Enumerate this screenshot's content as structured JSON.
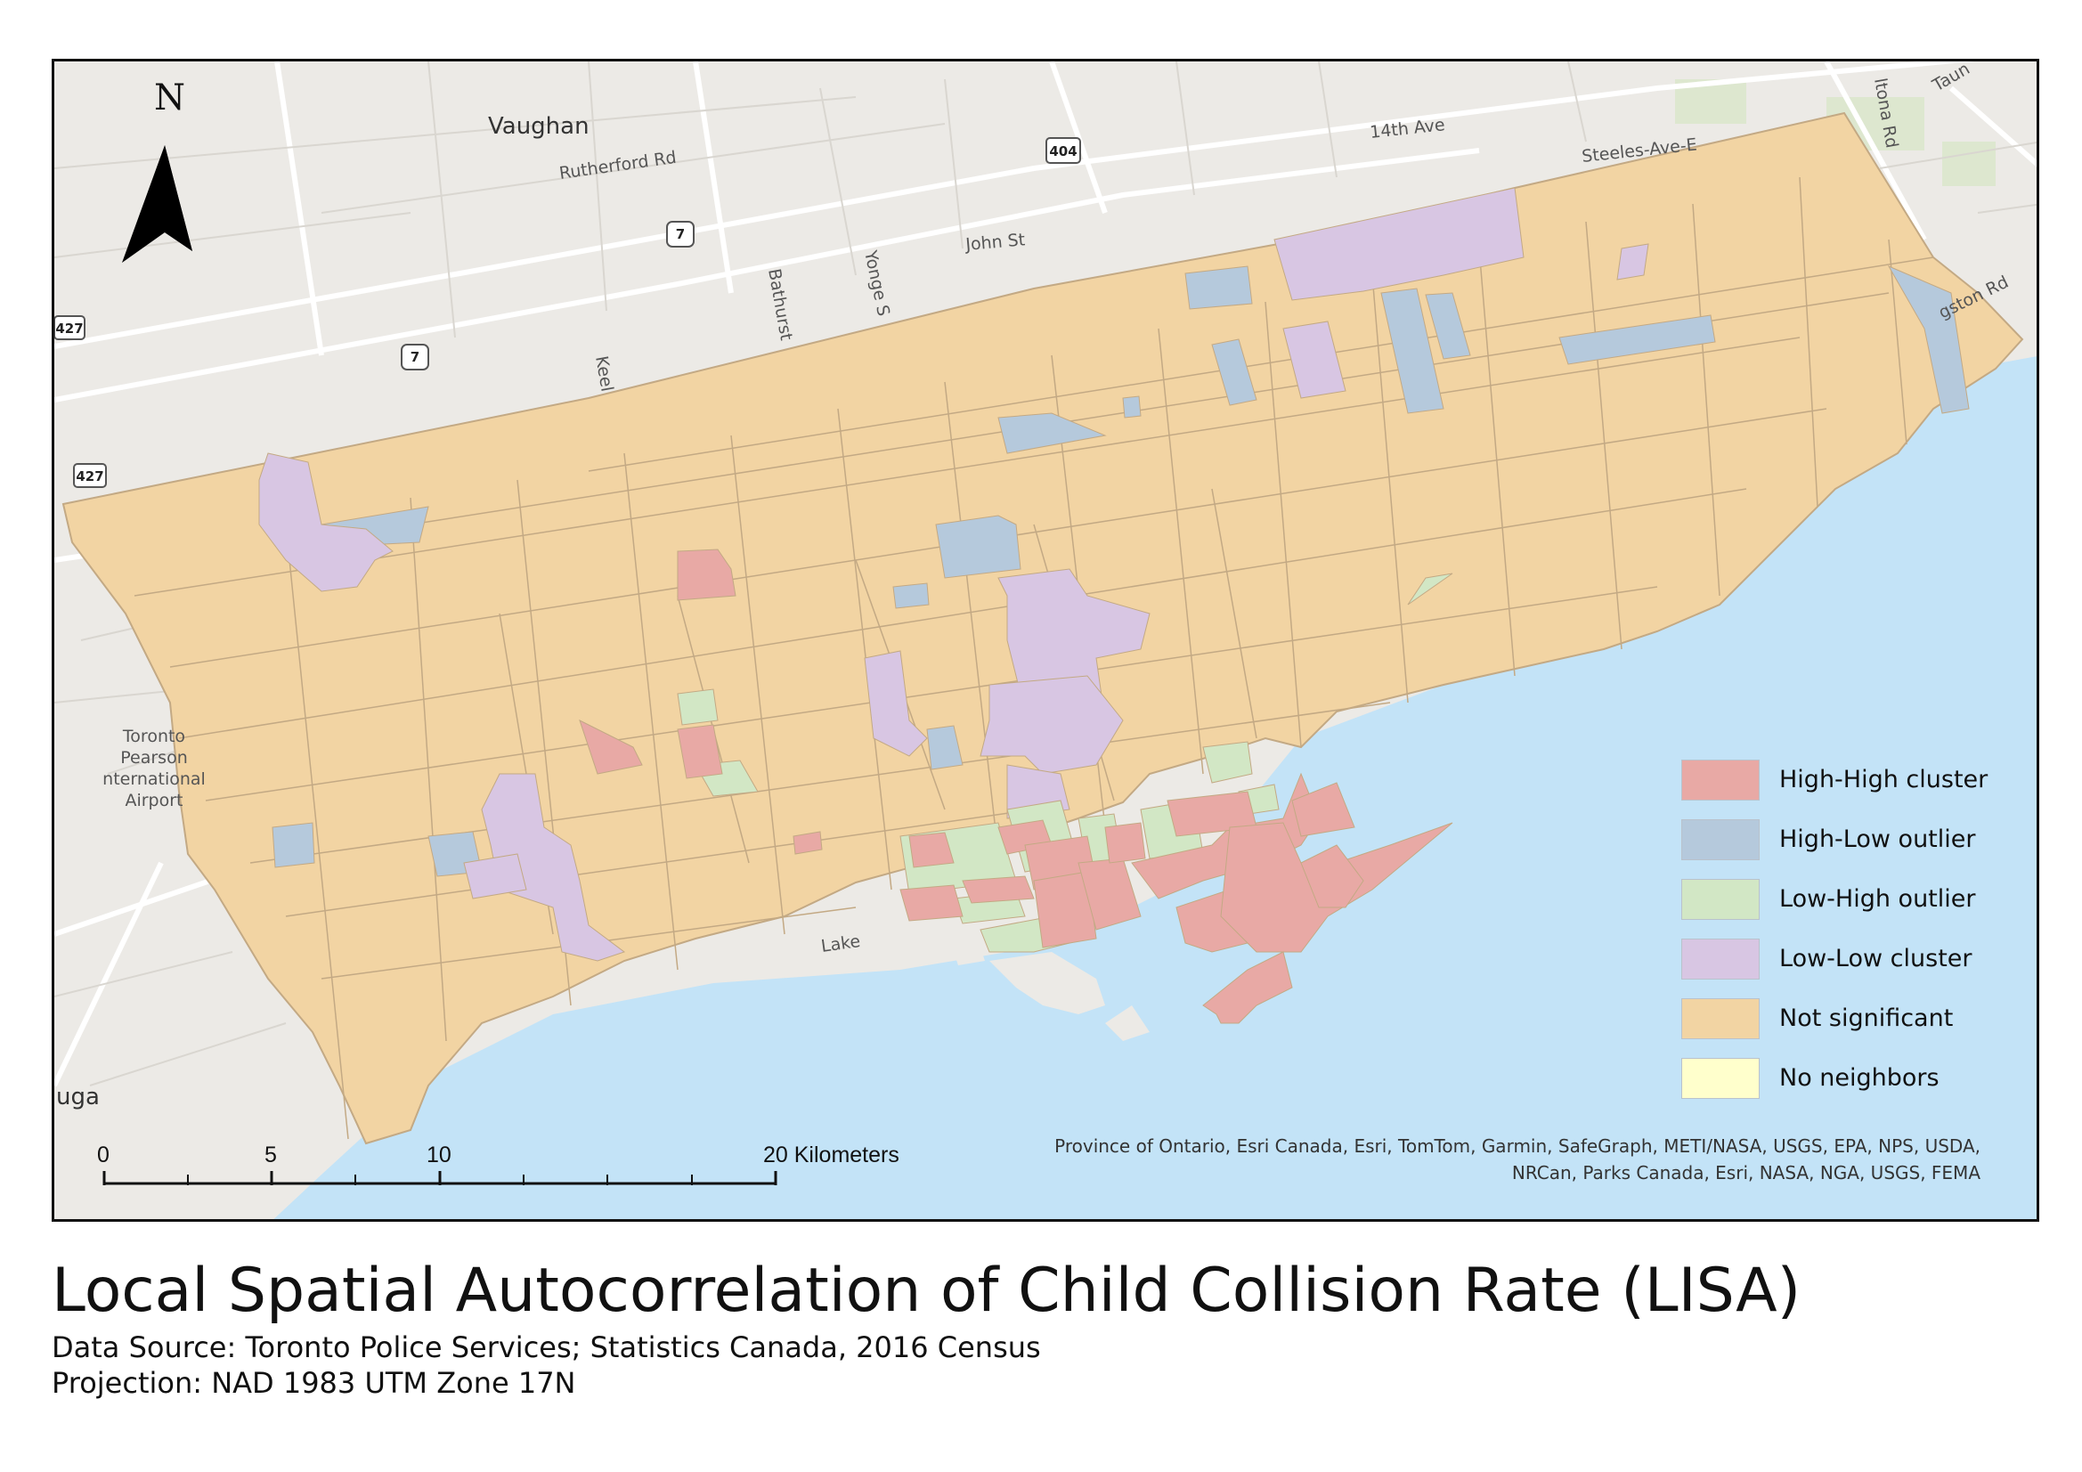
{
  "map": {
    "title": "Local Spatial Autocorrelation of Child Collision Rate (LISA)",
    "data_source": "Data Source: Toronto Police Services; Statistics Canada, 2016 Census",
    "projection": "Projection: NAD 1983 UTM Zone 17N",
    "north_arrow_label": "N",
    "legend": [
      {
        "label": "High-High cluster",
        "color": "#e8a9a5"
      },
      {
        "label": "High-Low outlier",
        "color": "#b5c9dc"
      },
      {
        "label": "Low-High outlier",
        "color": "#d2e7c5"
      },
      {
        "label": "Low-Low cluster",
        "color": "#d8c6e3"
      },
      {
        "label": "Not significant",
        "color": "#f2d4a3"
      },
      {
        "label": "No neighbors",
        "color": "#ffffcc"
      }
    ],
    "scale_bar": {
      "ticks": [
        "0",
        "5",
        "10",
        "20 Kilometers"
      ]
    },
    "attribution": [
      "Province of Ontario, Esri Canada, Esri, TomTom, Garmin, SafeGraph, METI/NASA, USGS, EPA, NPS, USDA,",
      "NRCan, Parks Canada, Esri, NASA, NGA, USGS, FEMA"
    ],
    "basemap_labels": {
      "vaughan": "Vaughan",
      "rutherford": "Rutherford Rd",
      "ave14": "14th Ave",
      "steeles": "Steeles-Ave-E",
      "john": "John St",
      "bathurst": "Bathurst",
      "yonge": "Yonge S",
      "keele": "Keel",
      "altona": "ltona Rd",
      "taunton": "Taun",
      "kingston": "gston Rd",
      "lake": "Lake",
      "mississauga": "uga",
      "airport": [
        "Toronto",
        "Pearson",
        "nternational",
        "Airport"
      ]
    },
    "highway_shields": [
      "427",
      "427",
      "7",
      "7",
      "404"
    ],
    "colors": {
      "water": "#c3e3f7",
      "land": "#eceae6",
      "road": "#ffffff",
      "tract_line": "#c3a984"
    }
  }
}
